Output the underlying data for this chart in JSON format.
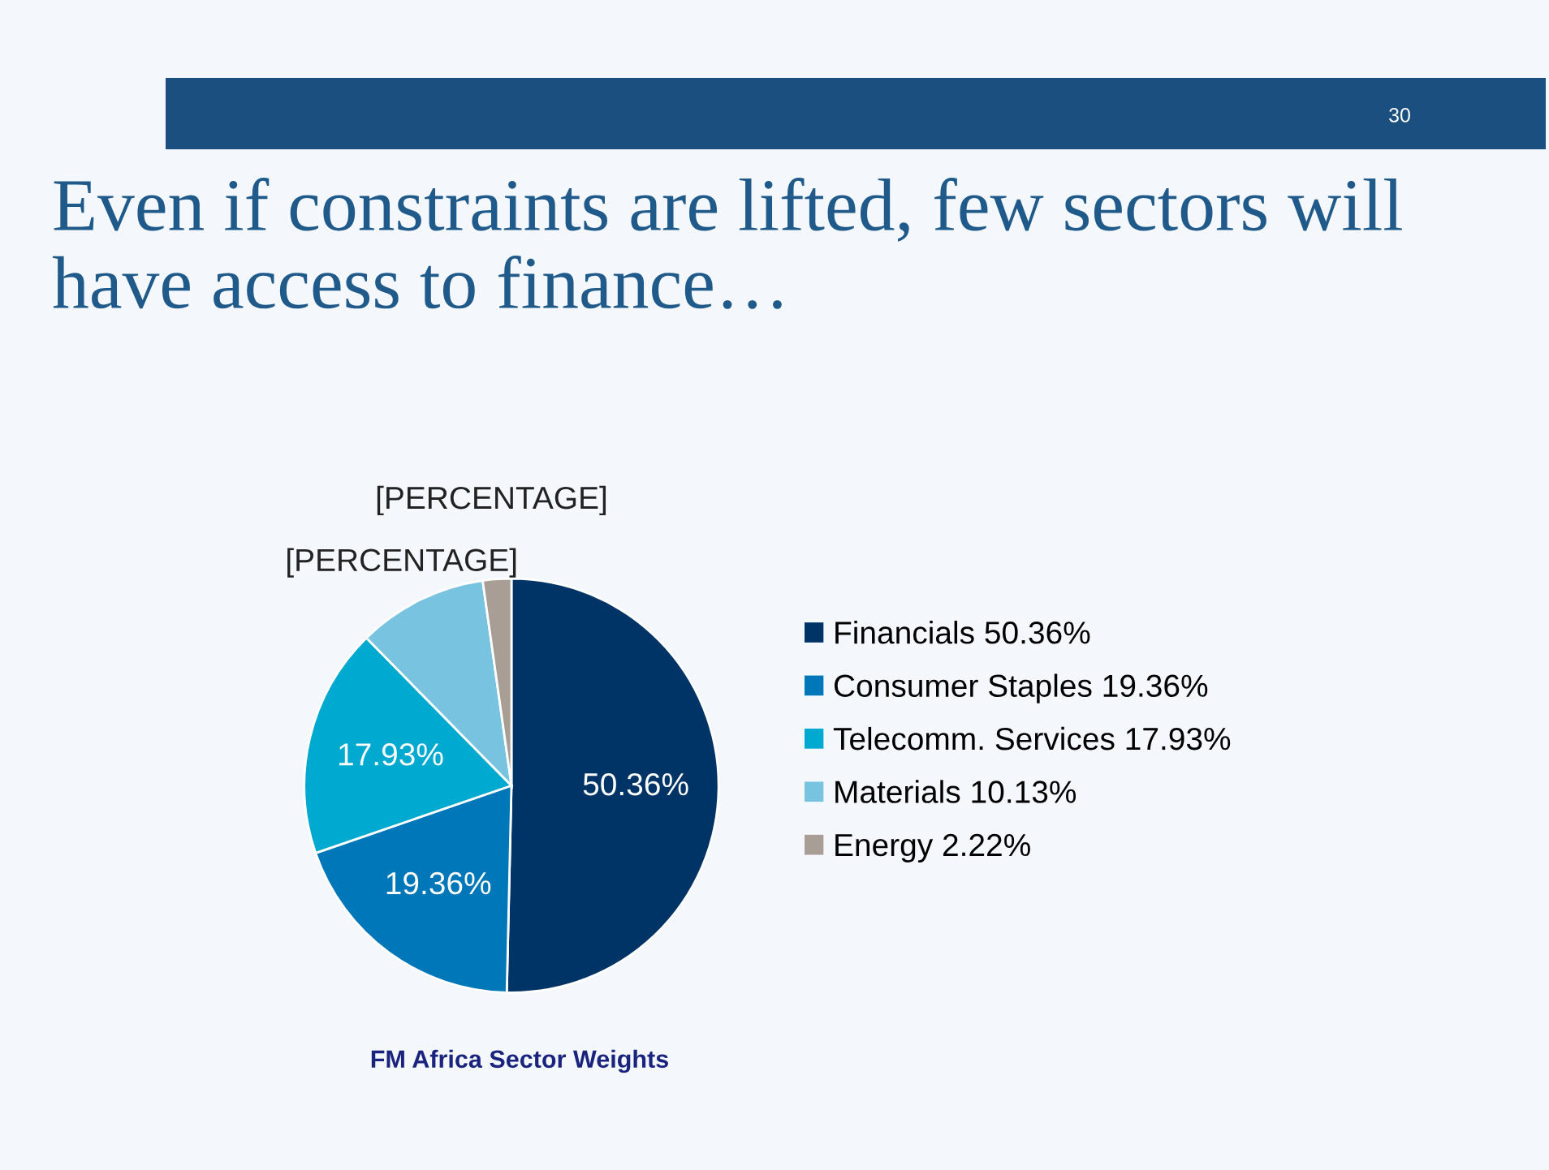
{
  "chart_data": {
    "type": "pie",
    "title": "Even if constraints are lifted, few sectors will have access to finance…",
    "subtitle": "FM Africa Sector Weights",
    "categories": [
      "Financials 50.36%",
      "Consumer Staples 19.36%",
      "Telecomm. Services 17.93%",
      "Materials 10.13%",
      "Energy 2.22%"
    ],
    "values": [
      50.36,
      19.36,
      17.93,
      10.13,
      2.22
    ],
    "colors": [
      "#003466",
      "#0077b8",
      "#00a9cf",
      "#78c4e0",
      "#a89e96"
    ],
    "value_labels": [
      "50.36%",
      "19.36%",
      "17.93%",
      "[PERCENTAGE]",
      "[PERCENTAGE]"
    ],
    "annotations": [
      "30"
    ],
    "legend": "right"
  }
}
